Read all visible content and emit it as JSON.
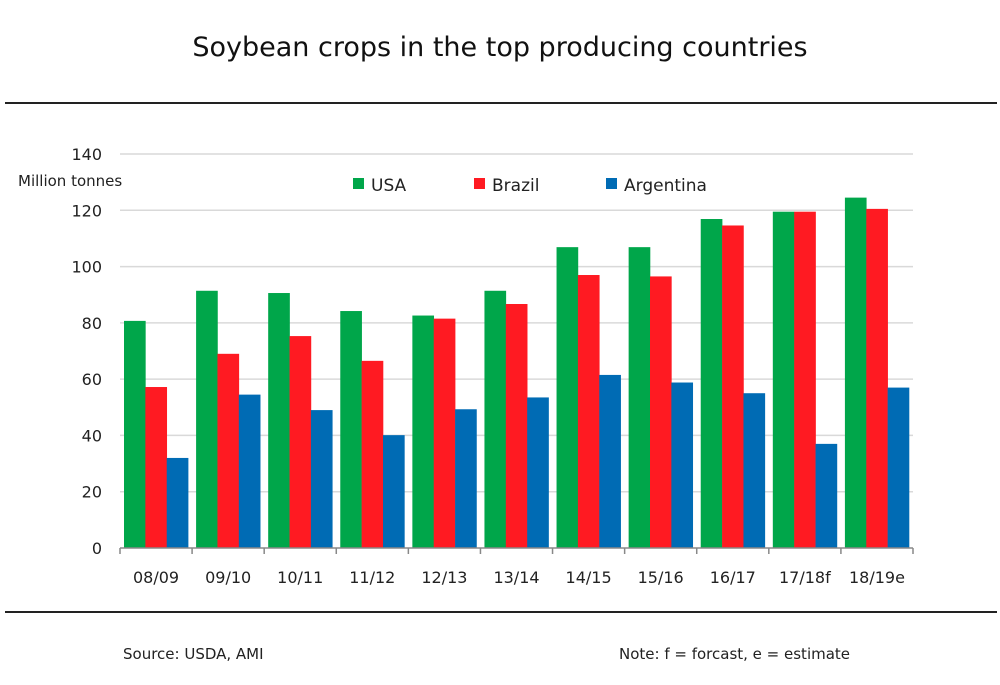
{
  "chart_data": {
    "type": "bar",
    "title": "Soybean crops in the top producing countries",
    "ylabel": "Million tonnes",
    "xlabel": "",
    "ylim": [
      0,
      140
    ],
    "yticks": [
      0,
      20,
      40,
      60,
      80,
      100,
      120,
      140
    ],
    "grid": true,
    "legend_position": "top",
    "categories": [
      "08/09",
      "09/10",
      "10/11",
      "11/12",
      "12/13",
      "13/14",
      "14/15",
      "15/16",
      "16/17",
      "17/18f",
      "18/19e"
    ],
    "series": [
      {
        "name": "USA",
        "color": "#00a64a",
        "values": [
          80.7,
          91.4,
          90.6,
          84.2,
          82.6,
          91.4,
          106.9,
          106.9,
          116.9,
          119.5,
          124.5
        ]
      },
      {
        "name": "Brazil",
        "color": "#ff1a22",
        "values": [
          57.2,
          69.0,
          75.3,
          66.5,
          81.5,
          86.7,
          97.0,
          96.5,
          114.6,
          119.5,
          120.5
        ]
      },
      {
        "name": "Argentina",
        "color": "#006bb4",
        "values": [
          32.0,
          54.5,
          49.0,
          40.1,
          49.3,
          53.5,
          61.5,
          58.8,
          55.0,
          37.0,
          57.0
        ]
      }
    ],
    "source": "Source: USDA, AMI",
    "note": "Note: f = forcast, e = estimate"
  }
}
